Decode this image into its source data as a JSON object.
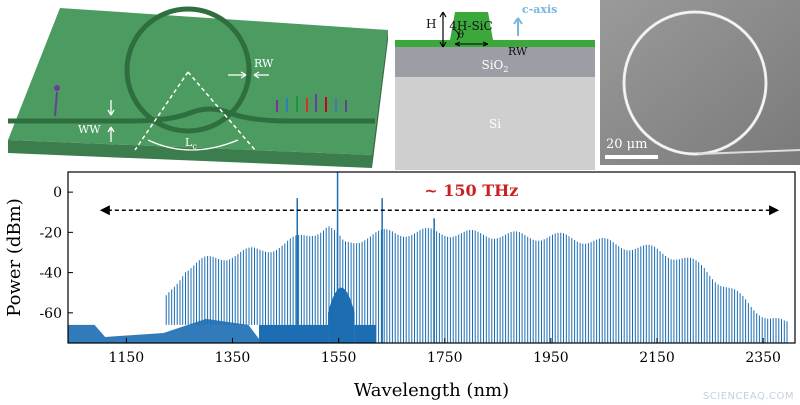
{
  "device": {
    "label_rw": "RW",
    "label_ww": "WW",
    "label_lc": "L",
    "label_lc_sub": "c"
  },
  "cross_section": {
    "material": "4H-SiC",
    "label_h": "H",
    "label_theta": "θ",
    "label_rw": "RW",
    "label_caxis": "c-axis",
    "label_sio2": "SiO",
    "label_sio2_sub": "2",
    "label_si": "Si"
  },
  "sem": {
    "scale_bar": "20 μm"
  },
  "watermark": "SCIENCEAQ.COM",
  "colors": {
    "chip_green": "#4c9c62",
    "sic_green": "#3aa83a",
    "spectrum_blue": "#1c6db2",
    "annotation_red": "#cc1f1f",
    "sio2_gray": "#9c9ea6",
    "si_gray": "#cfcfcf"
  },
  "chart_data": {
    "type": "line",
    "xlabel": "Wavelength (nm)",
    "ylabel": "Power (dBm)",
    "xlim": [
      1040,
      2410
    ],
    "ylim": [
      -75,
      10
    ],
    "xticks": [
      1150,
      1350,
      1550,
      1750,
      1950,
      2150,
      2350
    ],
    "yticks": [
      0,
      -20,
      -40,
      -60
    ],
    "annotation": "~ 150 THz",
    "annotation_range_nm": [
      1100,
      2380
    ],
    "noise_floor_dbm": -66,
    "envelope": {
      "wavelength_nm": [
        1220,
        1260,
        1300,
        1350,
        1400,
        1450,
        1500,
        1530,
        1560,
        1600,
        1650,
        1700,
        1750,
        1800,
        1850,
        1900,
        1950,
        2000,
        2050,
        2100,
        2150,
        2200,
        2240,
        2270,
        2300,
        2330,
        2360,
        2390
      ],
      "power_dbm": [
        -55,
        -38,
        -34,
        -31,
        -29,
        -26,
        -20,
        -17,
        -26,
        -22,
        -20,
        -20,
        -20,
        -21,
        -21,
        -22,
        -22,
        -23,
        -25,
        -27,
        -29,
        -33,
        -38,
        -45,
        -51,
        -57,
        -62,
        -66
      ]
    },
    "peaks": [
      {
        "wavelength_nm": 1472,
        "power_dbm": -3
      },
      {
        "wavelength_nm": 1548,
        "power_dbm": 11
      },
      {
        "wavelength_nm": 1632,
        "power_dbm": -3
      },
      {
        "wavelength_nm": 1730,
        "power_dbm": -13
      }
    ]
  }
}
